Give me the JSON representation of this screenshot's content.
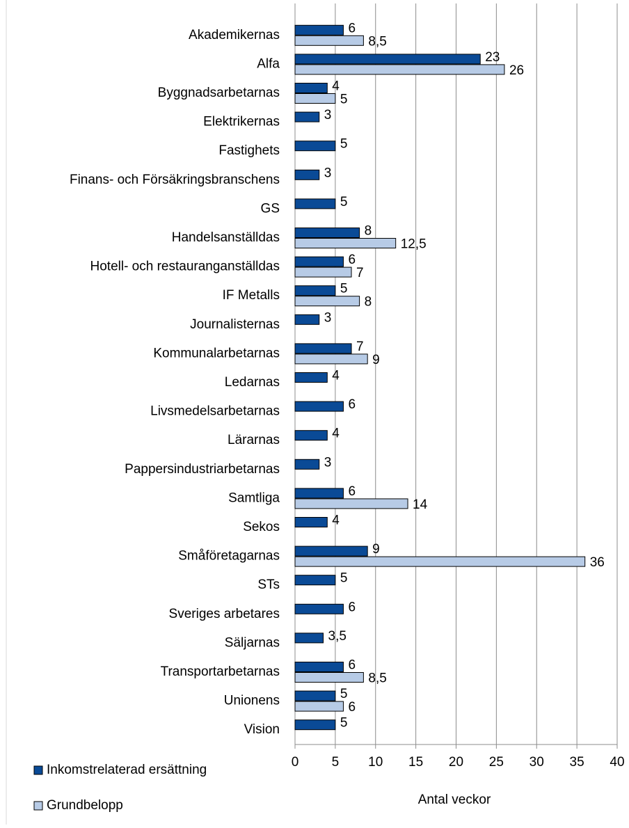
{
  "chart_data": {
    "type": "bar",
    "orientation": "horizontal",
    "categories": [
      "Akademikernas",
      "Alfa",
      "Byggnadsarbetarnas",
      "Elektrikernas",
      "Fastighets",
      "Finans- och Försäkringsbranschens",
      "GS",
      "Handelsanställdas",
      "Hotell- och restauranganställdas",
      "IF Metalls",
      "Journalisternas",
      "Kommunalarbetarnas",
      "Ledarnas",
      "Livsmedelsarbetarnas",
      "Lärarnas",
      "Pappersindustriarbetarnas",
      "Samtliga",
      "Sekos",
      "Småföretagarnas",
      "STs",
      "Sveriges arbetares",
      "Säljarnas",
      "Transportarbetarnas",
      "Unionens",
      "Vision"
    ],
    "series": [
      {
        "name": "Inkomstrelaterad ersättning",
        "color": "#0a4a96",
        "values": [
          6,
          23,
          4,
          3,
          5,
          3,
          5,
          8,
          6,
          5,
          3,
          7,
          4,
          6,
          4,
          3,
          6,
          4,
          9,
          5,
          6,
          3.5,
          6,
          5,
          5
        ],
        "value_labels": [
          "6",
          "23",
          "4",
          "3",
          "5",
          "3",
          "5",
          "8",
          "6",
          "5",
          "3",
          "7",
          "4",
          "6",
          "4",
          "3",
          "6",
          "4",
          "9",
          "5",
          "6",
          "3,5",
          "6",
          "5",
          "5"
        ]
      },
      {
        "name": "Grundbelopp",
        "color": "#b7cbe6",
        "values": [
          8.5,
          26,
          5,
          null,
          null,
          null,
          null,
          12.5,
          7,
          8,
          null,
          9,
          null,
          null,
          null,
          null,
          14,
          null,
          36,
          null,
          null,
          null,
          8.5,
          6,
          null
        ],
        "value_labels": [
          "8,5",
          "26",
          "5",
          null,
          null,
          null,
          null,
          "12,5",
          "7",
          "8",
          null,
          "9",
          null,
          null,
          null,
          null,
          "14",
          null,
          "36",
          null,
          null,
          null,
          "8,5",
          "6",
          null
        ]
      }
    ],
    "x_label": "Antal veckor",
    "xlim": [
      0,
      40
    ],
    "xticks": [
      0,
      5,
      10,
      15,
      20,
      25,
      30,
      35,
      40
    ],
    "grid": true,
    "legend": "bottom-left"
  }
}
